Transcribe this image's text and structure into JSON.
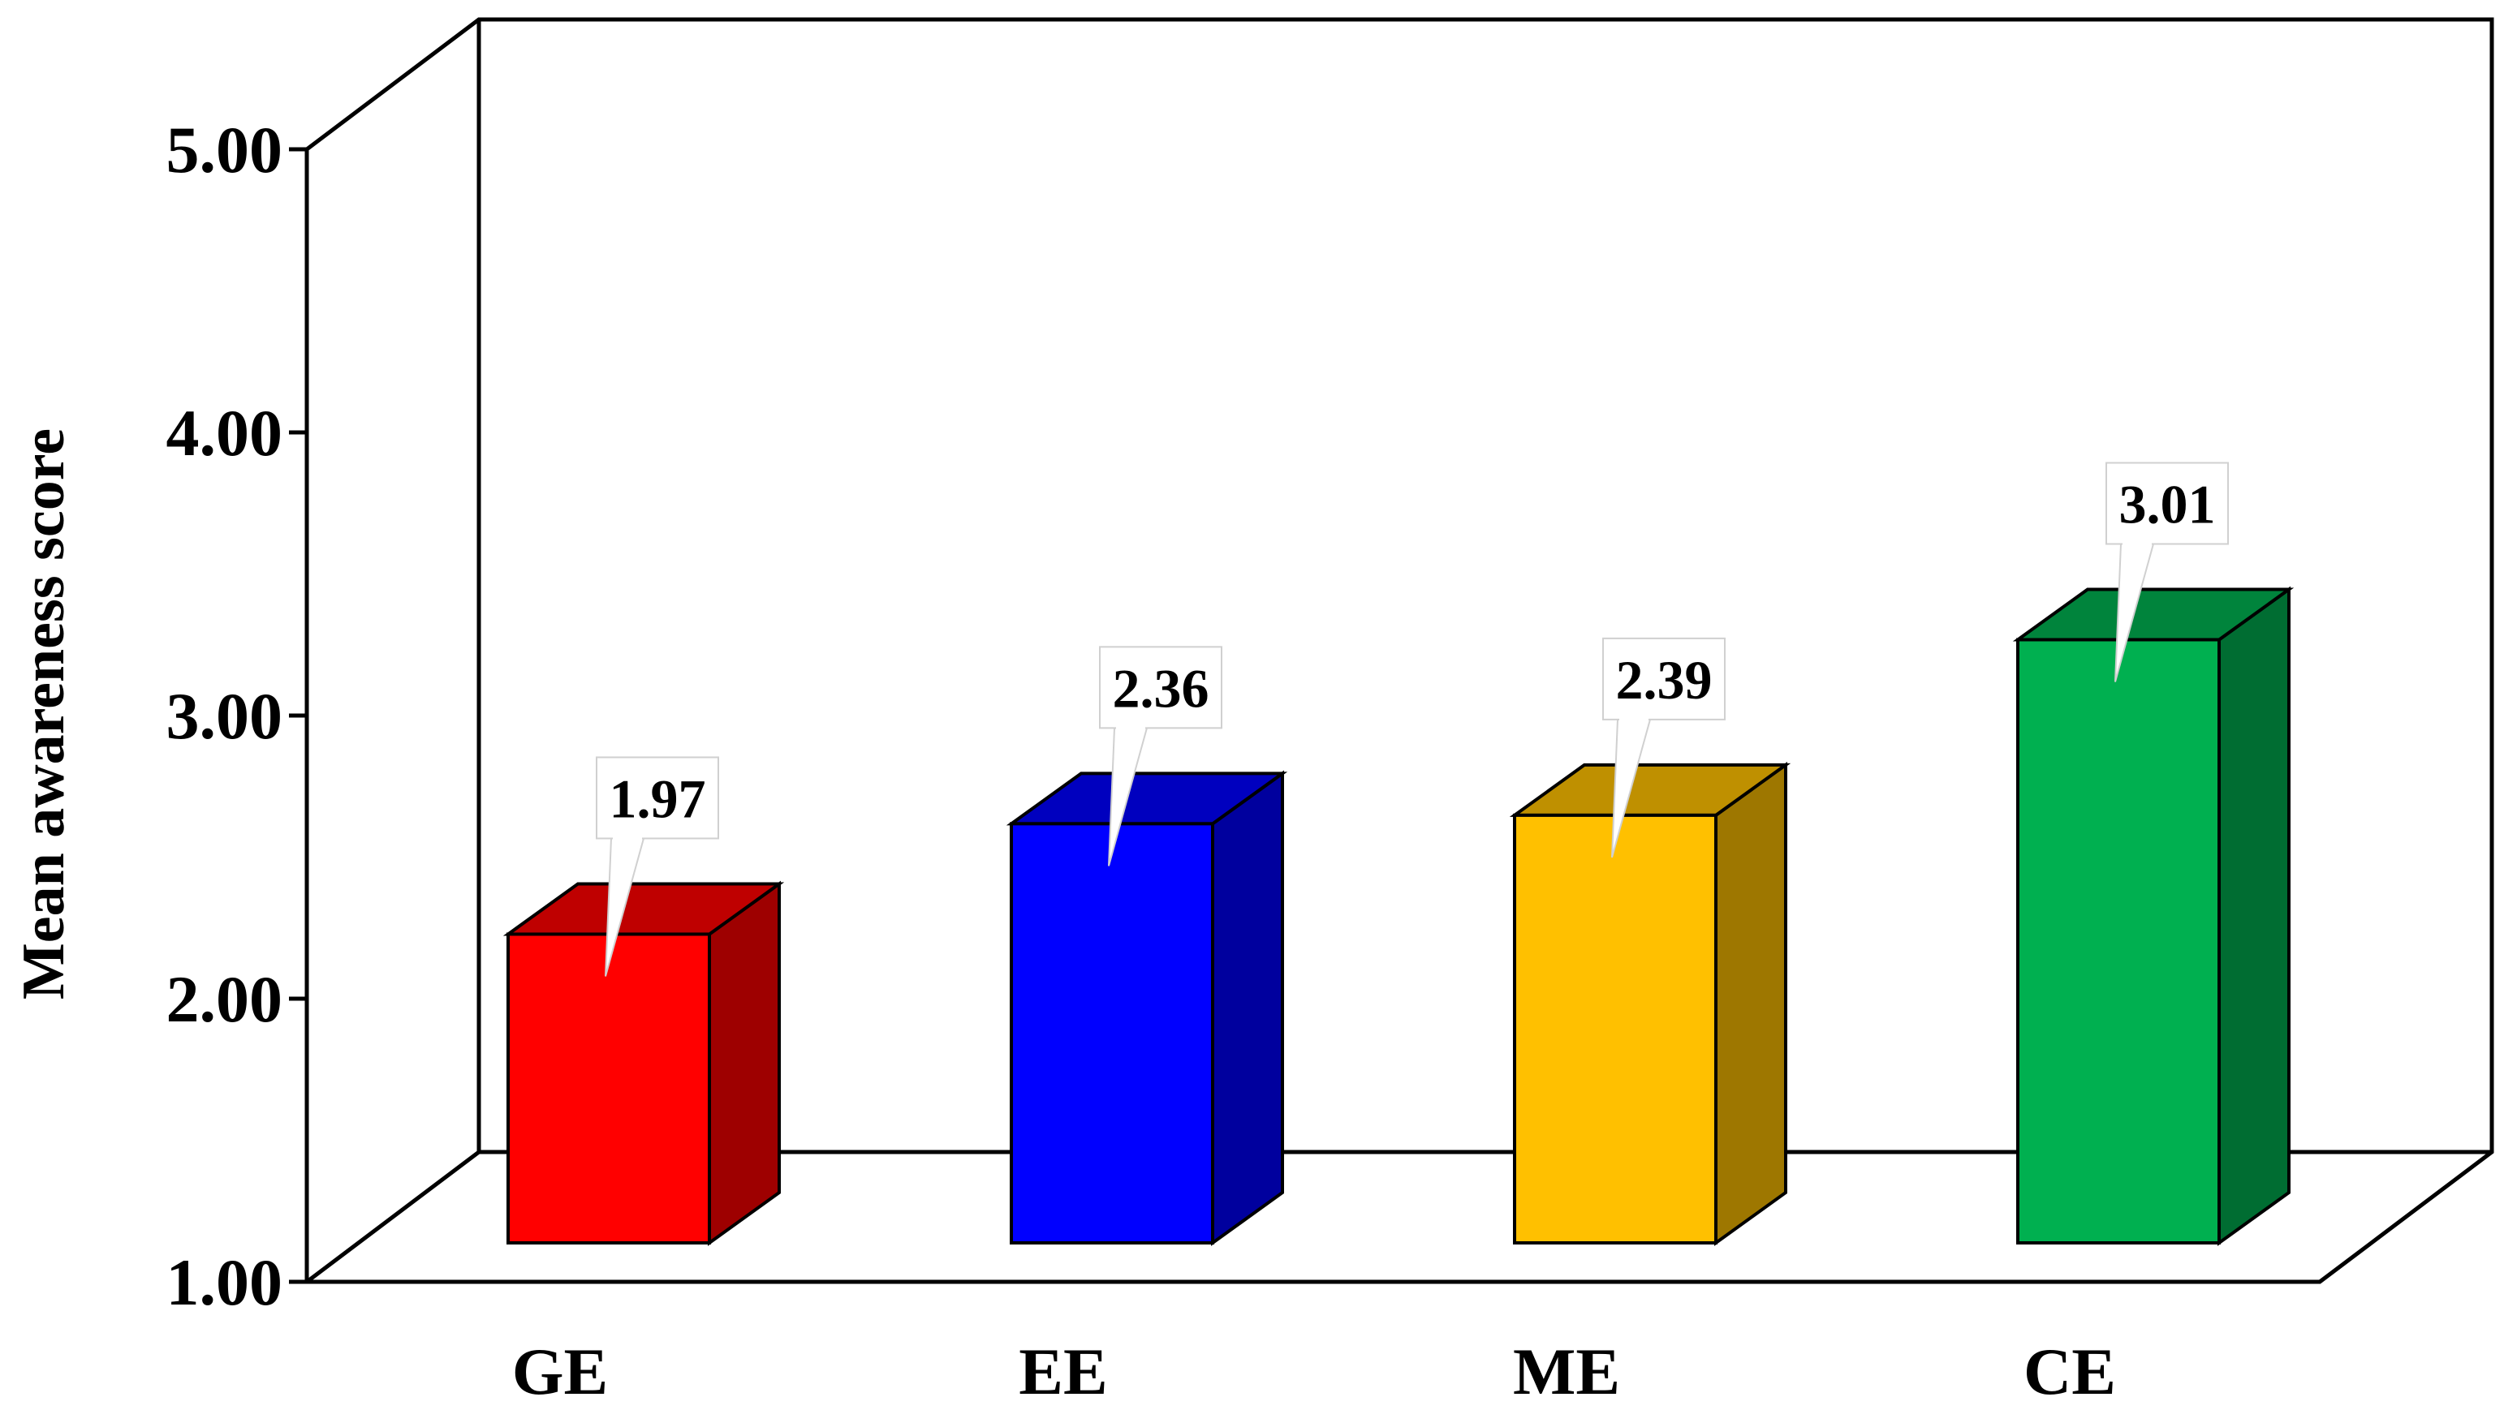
{
  "chart_data": {
    "type": "bar",
    "style": "3d",
    "ylabel": "Mean awareness score",
    "xlabel": "",
    "ylim": [
      1.0,
      5.0
    ],
    "yticks": [
      "1.00",
      "2.00",
      "3.00",
      "4.00",
      "5.00"
    ],
    "categories": [
      "GE",
      "EE",
      "ME",
      "CE"
    ],
    "values": [
      1.97,
      2.36,
      2.39,
      3.01
    ],
    "data_labels": [
      "1.97",
      "2.36",
      "2.39",
      "3.01"
    ],
    "colors": [
      "#ff0000",
      "#0000ff",
      "#ffc000",
      "#00b050"
    ],
    "grid": false,
    "legend": "none"
  }
}
